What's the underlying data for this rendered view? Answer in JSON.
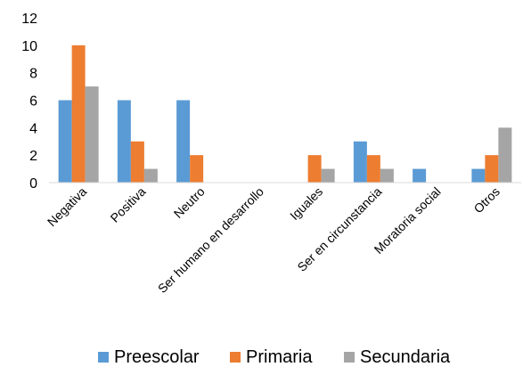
{
  "chart_data": {
    "type": "bar",
    "categories": [
      "Negativa",
      "Positiva",
      "Neutro",
      "Ser humano en desarrollo",
      "Iguales",
      "Ser en circunstancia",
      "Moratoria social",
      "Otros"
    ],
    "series": [
      {
        "name": "Preescolar",
        "color": "#5B9BD5",
        "values": [
          6,
          6,
          6,
          0,
          0,
          3,
          1,
          1
        ]
      },
      {
        "name": "Primaria",
        "color": "#ED7D31",
        "values": [
          10,
          3,
          2,
          0,
          2,
          2,
          0,
          2
        ]
      },
      {
        "name": "Secundaria",
        "color": "#A5A5A5",
        "values": [
          7,
          1,
          0,
          0,
          1,
          1,
          0,
          4
        ]
      }
    ],
    "y_ticks": [
      "0",
      "2",
      "4",
      "6",
      "8",
      "10",
      "12"
    ],
    "ylim": [
      0,
      12
    ],
    "grid": false,
    "legend_position": "bottom"
  }
}
